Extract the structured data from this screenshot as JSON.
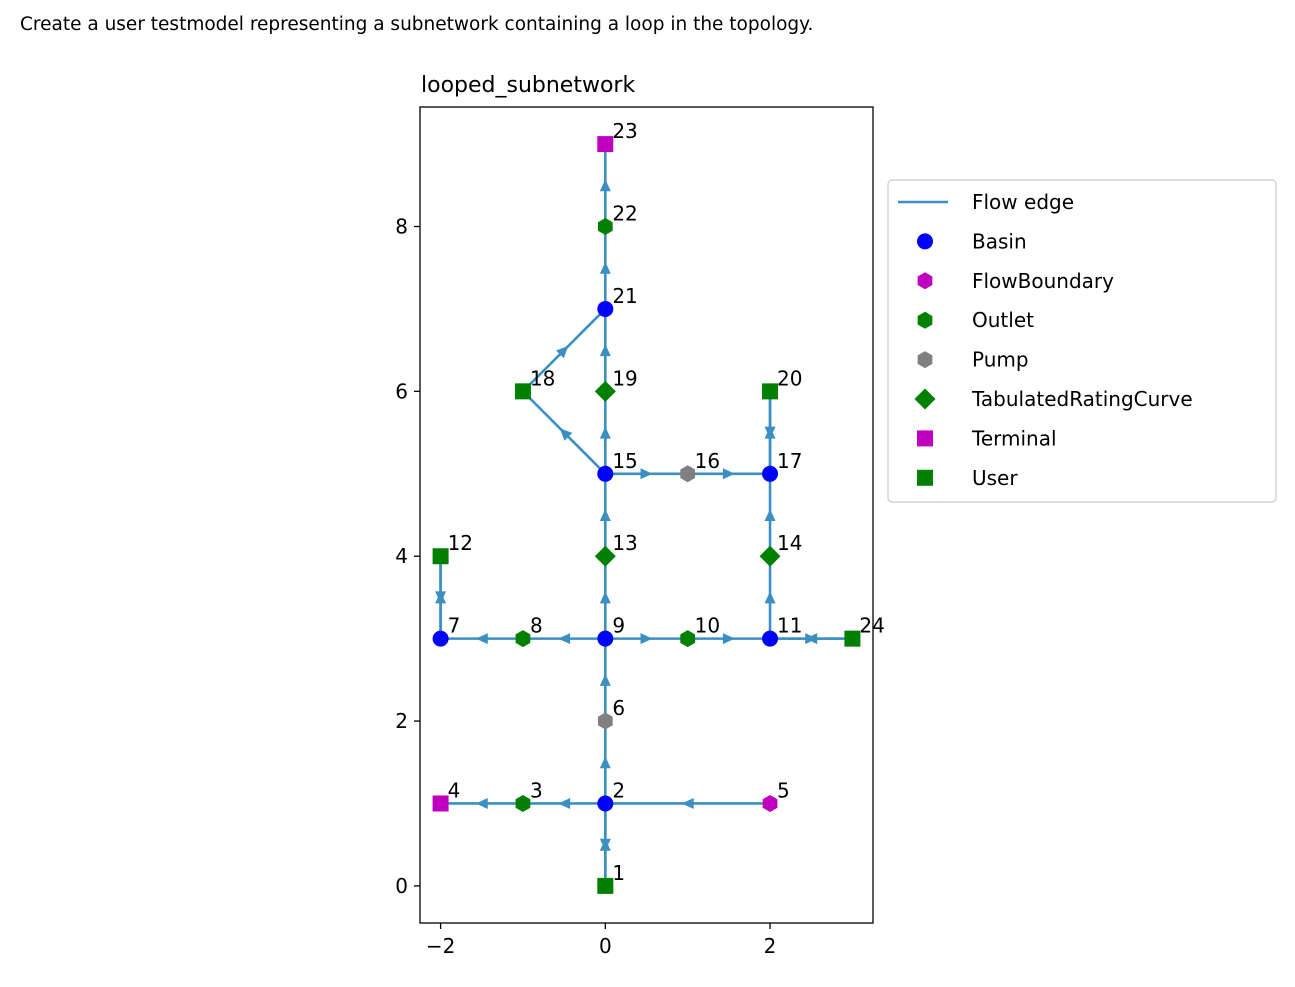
{
  "caption": "Create a user testmodel representing a subnetwork containing a loop in the topology.",
  "chart_data": {
    "type": "scatter",
    "title": "looped_subnetwork",
    "xlabel": "",
    "ylabel": "",
    "xlim": [
      -2.25,
      3.25
    ],
    "ylim": [
      -0.45,
      9.45
    ],
    "xticks": [
      -2,
      0,
      2
    ],
    "xtick_labels": [
      "−2",
      "0",
      "2"
    ],
    "yticks": [
      0,
      2,
      4,
      6,
      8
    ],
    "ytick_labels": [
      "0",
      "2",
      "4",
      "6",
      "8"
    ],
    "grid": false,
    "legend_position": "outside-right",
    "colors": {
      "edge": "#3b8fc2",
      "basin": "#0000ff",
      "magenta": "#bf00bf",
      "green": "#008000",
      "gray": "#808080"
    },
    "legend": [
      {
        "label": "Flow edge",
        "type": "FlowEdge"
      },
      {
        "label": "Basin",
        "type": "Basin"
      },
      {
        "label": "FlowBoundary",
        "type": "FlowBoundary"
      },
      {
        "label": "Outlet",
        "type": "Outlet"
      },
      {
        "label": "Pump",
        "type": "Pump"
      },
      {
        "label": "TabulatedRatingCurve",
        "type": "TabulatedRatingCurve"
      },
      {
        "label": "Terminal",
        "type": "Terminal"
      },
      {
        "label": "User",
        "type": "User"
      }
    ],
    "nodes": [
      {
        "id": 1,
        "label": "1",
        "x": 0,
        "y": 0,
        "type": "User"
      },
      {
        "id": 2,
        "label": "2",
        "x": 0,
        "y": 1,
        "type": "Basin"
      },
      {
        "id": 3,
        "label": "3",
        "x": -1,
        "y": 1,
        "type": "Outlet"
      },
      {
        "id": 4,
        "label": "4",
        "x": -2,
        "y": 1,
        "type": "Terminal"
      },
      {
        "id": 5,
        "label": "5",
        "x": 2,
        "y": 1,
        "type": "FlowBoundary"
      },
      {
        "id": 6,
        "label": "6",
        "x": 0,
        "y": 2,
        "type": "Pump"
      },
      {
        "id": 7,
        "label": "7",
        "x": -2,
        "y": 3,
        "type": "Basin"
      },
      {
        "id": 8,
        "label": "8",
        "x": -1,
        "y": 3,
        "type": "Outlet"
      },
      {
        "id": 9,
        "label": "9",
        "x": 0,
        "y": 3,
        "type": "Basin"
      },
      {
        "id": 10,
        "label": "10",
        "x": 1,
        "y": 3,
        "type": "Outlet"
      },
      {
        "id": 11,
        "label": "11",
        "x": 2,
        "y": 3,
        "type": "Basin"
      },
      {
        "id": 12,
        "label": "12",
        "x": -2,
        "y": 4,
        "type": "User"
      },
      {
        "id": 13,
        "label": "13",
        "x": 0,
        "y": 4,
        "type": "TabulatedRatingCurve"
      },
      {
        "id": 14,
        "label": "14",
        "x": 2,
        "y": 4,
        "type": "TabulatedRatingCurve"
      },
      {
        "id": 15,
        "label": "15",
        "x": 0,
        "y": 5,
        "type": "Basin"
      },
      {
        "id": 16,
        "label": "16",
        "x": 1,
        "y": 5,
        "type": "Pump"
      },
      {
        "id": 17,
        "label": "17",
        "x": 2,
        "y": 5,
        "type": "Basin"
      },
      {
        "id": 18,
        "label": "18",
        "x": -1,
        "y": 6,
        "type": "User"
      },
      {
        "id": 19,
        "label": "19",
        "x": 0,
        "y": 6,
        "type": "TabulatedRatingCurve"
      },
      {
        "id": 20,
        "label": "20",
        "x": 2,
        "y": 6,
        "type": "User"
      },
      {
        "id": 21,
        "label": "21",
        "x": 0,
        "y": 7,
        "type": "Basin"
      },
      {
        "id": 22,
        "label": "22",
        "x": 0,
        "y": 8,
        "type": "Outlet"
      },
      {
        "id": 23,
        "label": "23",
        "x": 0,
        "y": 9,
        "type": "Terminal"
      },
      {
        "id": 24,
        "label": "24",
        "x": 3,
        "y": 3,
        "type": "User"
      }
    ],
    "edges": [
      {
        "from": 5,
        "to": 2
      },
      {
        "from": 2,
        "to": 3
      },
      {
        "from": 3,
        "to": 4
      },
      {
        "from": 2,
        "to": 1
      },
      {
        "from": 1,
        "to": 2
      },
      {
        "from": 2,
        "to": 6
      },
      {
        "from": 6,
        "to": 9
      },
      {
        "from": 9,
        "to": 8
      },
      {
        "from": 8,
        "to": 7
      },
      {
        "from": 7,
        "to": 12
      },
      {
        "from": 12,
        "to": 7
      },
      {
        "from": 9,
        "to": 10
      },
      {
        "from": 10,
        "to": 11
      },
      {
        "from": 11,
        "to": 24
      },
      {
        "from": 24,
        "to": 11
      },
      {
        "from": 9,
        "to": 13
      },
      {
        "from": 13,
        "to": 15
      },
      {
        "from": 11,
        "to": 14
      },
      {
        "from": 14,
        "to": 17
      },
      {
        "from": 15,
        "to": 16
      },
      {
        "from": 16,
        "to": 17
      },
      {
        "from": 17,
        "to": 20
      },
      {
        "from": 20,
        "to": 17
      },
      {
        "from": 15,
        "to": 18
      },
      {
        "from": 18,
        "to": 21
      },
      {
        "from": 15,
        "to": 19
      },
      {
        "from": 19,
        "to": 21
      },
      {
        "from": 21,
        "to": 22
      },
      {
        "from": 22,
        "to": 23
      }
    ]
  }
}
